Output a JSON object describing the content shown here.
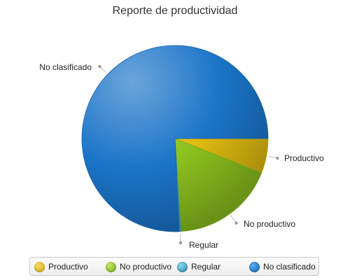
{
  "chart_data": {
    "type": "pie",
    "title": "Reporte de productividad",
    "slices": [
      {
        "name": "Productivo",
        "value": 6,
        "color": "#e0bb10"
      },
      {
        "name": "No productivo",
        "value": 18,
        "color": "#8cc21e"
      },
      {
        "name": "Regular",
        "value": 0.3,
        "color": "#3aa3c6"
      },
      {
        "name": "No clasificado",
        "value": 75.7,
        "color": "#1b74c8"
      }
    ],
    "legend": {
      "position": "bottom"
    }
  }
}
